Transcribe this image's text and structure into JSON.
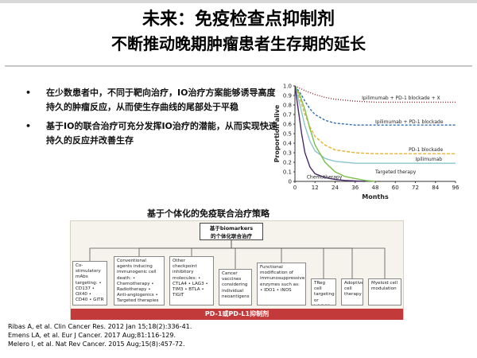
{
  "title": {
    "line1": "未来：免疫检查点抑制剂",
    "line2": "不断推动晚期肿瘤患者生存期的延长"
  },
  "bullets": [
    "在少数患者中，不同于靶向治疗，IO治疗方案能够诱导高度持久的肿瘤反应，从而使生存曲线的尾部处于平稳",
    "基于IO的联合治疗可充分发挥IO治疗的潜能，从而实现快速持久的反应并改善生存"
  ],
  "bullet_marker": "•",
  "chart_data": {
    "type": "line",
    "xlabel": "Months",
    "ylabel": "Proportion alive",
    "x_ticks": [
      0,
      12,
      24,
      36,
      48,
      60,
      72,
      84,
      96
    ],
    "y_ticks": [
      0,
      0.1,
      0.2,
      0.3,
      0.4,
      0.5,
      0.6,
      0.7,
      0.8,
      0.9,
      1.0
    ],
    "y_tick_labels": [
      "0",
      "0.1",
      "0.2",
      "0.3",
      "0.4",
      "0.5",
      "0.6",
      "0.7",
      "0.8",
      "0.9",
      "1.0"
    ],
    "xlim": [
      0,
      96
    ],
    "ylim": [
      0,
      1.0
    ],
    "series": [
      {
        "name": "Ipilimumab + PD-1 blockade + X",
        "color": "#8a1f2a",
        "dash": "1,2",
        "x": [
          0,
          6,
          12,
          18,
          24,
          36,
          48,
          60,
          72,
          84,
          96
        ],
        "y": [
          1.0,
          0.95,
          0.91,
          0.88,
          0.86,
          0.84,
          0.83,
          0.83,
          0.83,
          0.83,
          0.83
        ]
      },
      {
        "name": "Ipilimumab + PD-1 blockade",
        "color": "#2c6fb7",
        "dash": "3,2",
        "x": [
          0,
          3,
          6,
          9,
          12,
          18,
          24,
          36,
          48,
          60,
          72,
          84,
          96
        ],
        "y": [
          1.0,
          0.93,
          0.84,
          0.76,
          0.7,
          0.64,
          0.61,
          0.59,
          0.59,
          0.59,
          0.59,
          0.59,
          0.59
        ]
      },
      {
        "name": "PD-1 blockade",
        "color": "#e8b230",
        "dash": "4,2",
        "x": [
          0,
          3,
          6,
          9,
          12,
          18,
          24,
          36,
          48,
          60,
          72,
          84,
          96
        ],
        "y": [
          1.0,
          0.86,
          0.7,
          0.57,
          0.47,
          0.38,
          0.33,
          0.3,
          0.29,
          0.29,
          0.29,
          0.29,
          0.29
        ]
      },
      {
        "name": "Ipilimumab",
        "color": "#8cc7cc",
        "dash": "",
        "x": [
          0,
          3,
          6,
          9,
          12,
          18,
          24,
          30,
          36,
          48,
          60,
          72,
          84,
          96
        ],
        "y": [
          1.0,
          0.8,
          0.58,
          0.42,
          0.32,
          0.24,
          0.21,
          0.2,
          0.19,
          0.19,
          0.19,
          0.19,
          0.19,
          0.19
        ]
      },
      {
        "name": "Targeted therapy",
        "color": "#7bbf4a",
        "dash": "",
        "x": [
          0,
          3,
          6,
          9,
          12,
          18,
          24,
          30,
          36,
          42,
          48
        ],
        "y": [
          1.0,
          0.9,
          0.75,
          0.55,
          0.38,
          0.2,
          0.1,
          0.05,
          0.03,
          0.01,
          0.0
        ]
      },
      {
        "name": "Chemotherapy",
        "color": "#4a2a6a",
        "dash": "",
        "x": [
          0,
          2,
          4,
          6,
          9,
          12,
          18,
          24,
          30,
          36,
          42
        ],
        "y": [
          1.0,
          0.75,
          0.5,
          0.3,
          0.15,
          0.08,
          0.04,
          0.02,
          0.01,
          0.005,
          0.0
        ]
      }
    ]
  },
  "strategy": {
    "title": "基于个体化的免疫联合治疗策略",
    "center_line1": "基于biomarkers",
    "center_line2": "的个体化联合治疗",
    "boxes": [
      "Co-stimulatory mAbs targeting: • CD137 • OX40 • CD40 • GITR",
      "Conventional agents inducing immunogenic cell death: • Chemotherapy • Radiotherapy • Anti-angiogenics • Targeted therapies",
      "Other checkpoint inhibitory molecules: • CTLA4 • LAG3 • TIM3 • BTLA • TIGIT",
      "Cancer vaccines considering individual neoantigens",
      "Functional modification of immunosuppressive enzymes such as: • IDO1 • iNOS",
      "TReg cell targeting or inhibition",
      "Adoptive cell therapy",
      "Myeloid cell modulation"
    ],
    "bar_label": "PD-1或PD-L1抑制剂"
  },
  "references": [
    "Ribas A, et al. Clin Cancer Res. 2012 Jan 15;18(2):336-41.",
    "Emens LA, et al. Eur J Cancer. 2017 Aug;81:116-129.",
    "Melero I, et al. Nat Rev Cancer. 2015 Aug;15(8):457-72."
  ]
}
